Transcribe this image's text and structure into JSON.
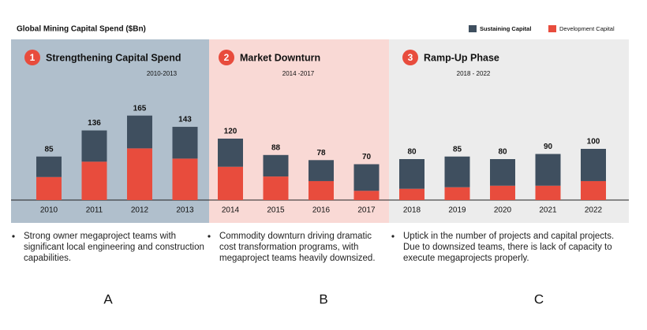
{
  "chart_data": {
    "type": "stacked-bar",
    "title": "Global Mining Capital Spend ($Bn)",
    "categories": [
      "2010",
      "2011",
      "2012",
      "2013",
      "2014",
      "2015",
      "2016",
      "2017",
      "2018",
      "2019",
      "2020",
      "2021",
      "2022"
    ],
    "series": [
      {
        "name": "Sustaining Capital",
        "color": "#3f4f5f",
        "values": [
          40,
          61,
          64,
          62,
          55,
          42,
          41,
          52,
          58,
          60,
          52,
          62,
          63
        ]
      },
      {
        "name": "Development  Capital",
        "color": "#e84c3d",
        "values": [
          45,
          75,
          101,
          81,
          65,
          46,
          37,
          18,
          22,
          25,
          28,
          28,
          37
        ]
      }
    ],
    "totals": [
      85,
      136,
      165,
      143,
      120,
      88,
      78,
      70,
      80,
      85,
      80,
      90,
      100
    ],
    "phases": [
      {
        "number": 1,
        "title": "Strengthening Capital Spend",
        "years": "2010-2013",
        "color": "#b0bfcc",
        "text": "Strong owner megaproject teams with significant local engineering and construction capabilities.",
        "letter": "A"
      },
      {
        "number": 2,
        "title": "Market Downturn",
        "years": "2014 -2017",
        "color": "#f9d9d5",
        "text": "Commodity downturn driving dramatic cost transformation programs, with megaproject teams heavily downsized.",
        "letter": "B"
      },
      {
        "number": 3,
        "title": "Ramp-Up Phase",
        "years": "2018 - 2022",
        "color": "#ececec",
        "text": "Uptick in the number of projects and capital projects. Due to downsized teams, there is lack of capacity to execute megaprojects properly.",
        "letter": "C"
      }
    ]
  }
}
